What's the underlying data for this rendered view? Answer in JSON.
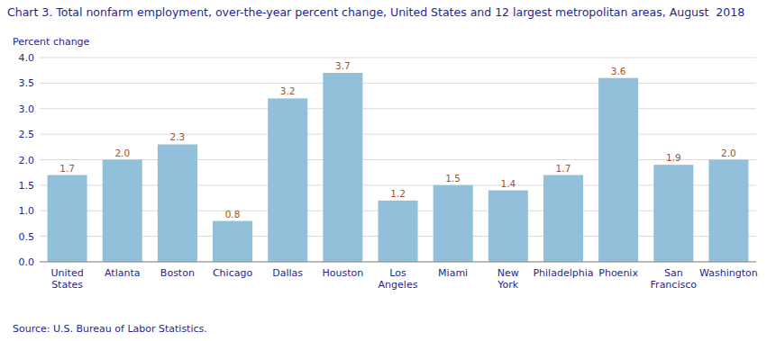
{
  "chart_data": {
    "type": "bar",
    "title": "Chart 3. Total nonfarm employment, over-the-year percent change, United States and 12 largest metropolitan areas, August  2018",
    "ylabel": "Percent change",
    "source": "Source: U.S. Bureau of Labor Statistics.",
    "categories": [
      "United\nStates",
      "Atlanta",
      "Boston",
      "Chicago",
      "Dallas",
      "Houston",
      "Los\nAngeles",
      "Miami",
      "New\nYork",
      "Philadelphia",
      "Phoenix",
      "San\nFrancisco",
      "Washington"
    ],
    "values": [
      1.7,
      2.0,
      2.3,
      0.8,
      3.2,
      3.7,
      1.2,
      1.5,
      1.4,
      1.7,
      3.6,
      1.9,
      2.0
    ],
    "value_labels": [
      "1.7",
      "2.0",
      "2.3",
      "0.8",
      "3.2",
      "3.7",
      "1.2",
      "1.5",
      "1.4",
      "1.7",
      "3.6",
      "1.9",
      "2.0"
    ],
    "color": "#92BFD9",
    "ylim": [
      0,
      4.0
    ],
    "yticks": [
      {
        "value": 0.0,
        "label": "0.0"
      },
      0.5,
      {
        "value": 1.0,
        "label": "1.0"
      },
      1.5,
      {
        "value": 2.0,
        "label": "2.0"
      },
      2.5,
      {
        "value": 3.0,
        "label": "3.0"
      },
      3.5,
      {
        "value": 4.0,
        "label": "4.0"
      }
    ],
    "grid": true,
    "data_labels": true
  }
}
